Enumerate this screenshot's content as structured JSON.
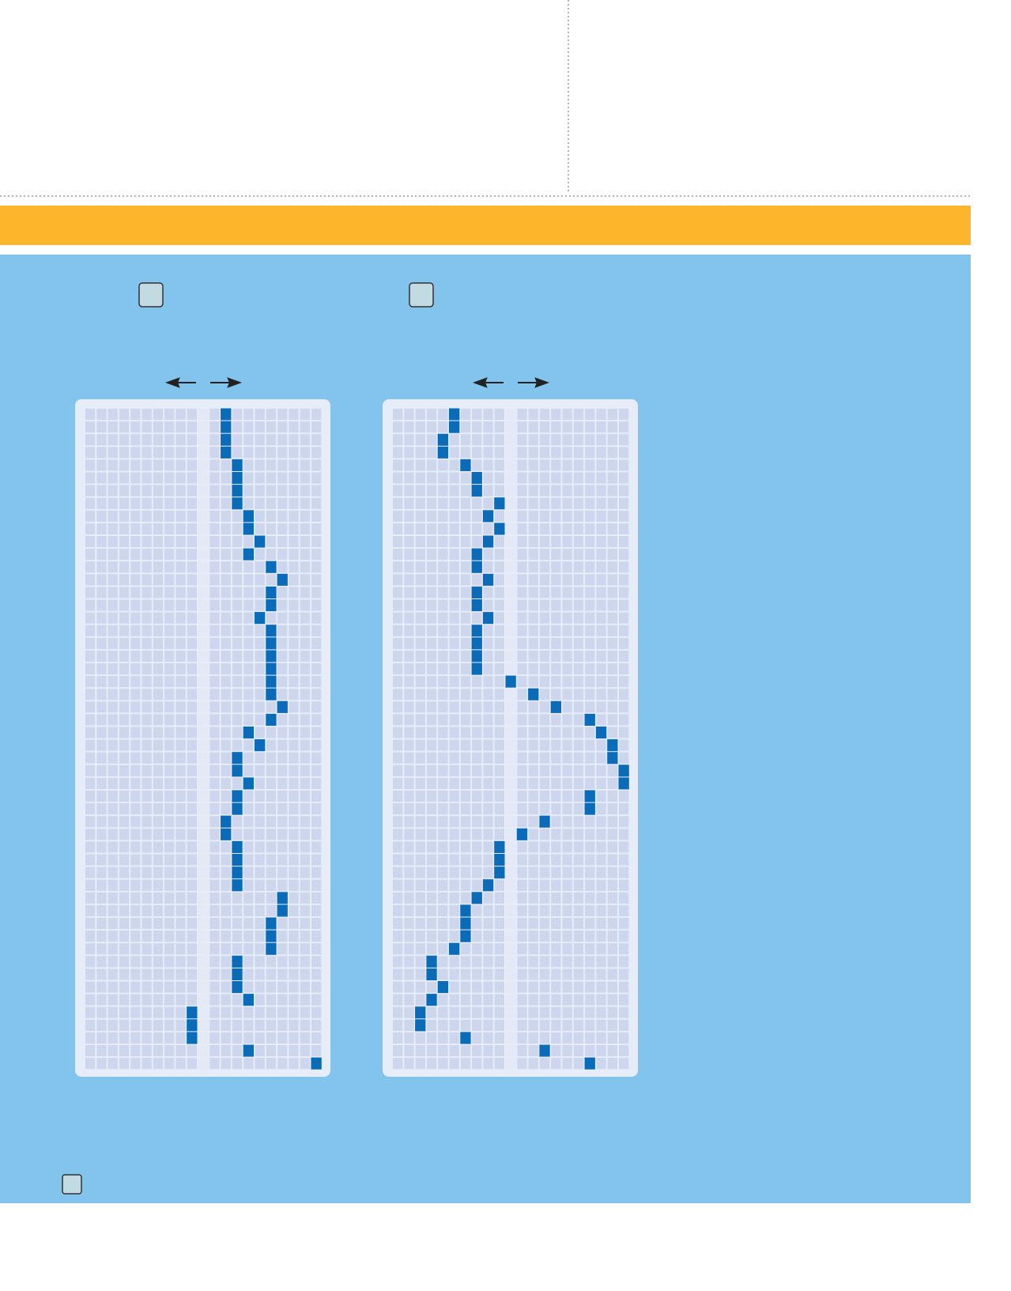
{
  "grids": [
    {
      "xlim": [
        -10,
        10
      ],
      "positions": [
        2,
        2,
        2,
        2,
        3,
        3,
        3,
        3,
        4,
        4,
        5,
        4,
        6,
        7,
        6,
        6,
        5,
        6,
        6,
        6,
        6,
        6,
        6,
        7,
        6,
        4,
        5,
        3,
        3,
        4,
        3,
        3,
        2,
        2,
        3,
        3,
        3,
        3,
        7,
        7,
        6,
        6,
        6,
        3,
        3,
        3,
        4,
        -1,
        -1,
        -1,
        4,
        10
      ]
    },
    {
      "xlim": [
        -10,
        10
      ],
      "positions": [
        -5,
        -5,
        -6,
        -6,
        -4,
        -3,
        -3,
        -1,
        -2,
        -1,
        -2,
        -3,
        -3,
        -2,
        -3,
        -3,
        -2,
        -3,
        -3,
        -3,
        -3,
        0,
        2,
        4,
        7,
        8,
        9,
        9,
        10,
        10,
        7,
        7,
        3,
        1,
        -1,
        -1,
        -1,
        -2,
        -3,
        -4,
        -4,
        -4,
        -5,
        -7,
        -7,
        -6,
        -7,
        -8,
        -8,
        -4,
        3,
        7
      ]
    }
  ]
}
